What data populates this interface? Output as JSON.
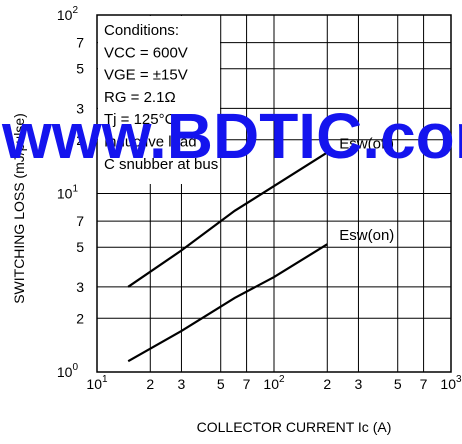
{
  "chart_data": {
    "type": "line",
    "xlabel": "COLLECTOR CURRENT Ic (A)",
    "ylabel": "SWITCHING LOSS (mJ/pulse)",
    "xscale": "log",
    "yscale": "log",
    "xlim": [
      10,
      1000
    ],
    "ylim": [
      1,
      100
    ],
    "grid": true,
    "x_ticks": [
      {
        "v": 10,
        "base": "10",
        "exp": "1"
      },
      {
        "v": 20,
        "label": "2"
      },
      {
        "v": 30,
        "label": "3"
      },
      {
        "v": 50,
        "label": "5"
      },
      {
        "v": 70,
        "label": "7"
      },
      {
        "v": 100,
        "base": "10",
        "exp": "2"
      },
      {
        "v": 200,
        "label": "2"
      },
      {
        "v": 300,
        "label": "3"
      },
      {
        "v": 500,
        "label": "5"
      },
      {
        "v": 700,
        "label": "7"
      },
      {
        "v": 1000,
        "base": "10",
        "exp": "3"
      }
    ],
    "y_ticks": [
      {
        "v": 1,
        "base": "10",
        "exp": "0"
      },
      {
        "v": 2,
        "label": "2"
      },
      {
        "v": 3,
        "label": "3"
      },
      {
        "v": 5,
        "label": "5"
      },
      {
        "v": 7,
        "label": "7"
      },
      {
        "v": 10,
        "base": "10",
        "exp": "1"
      },
      {
        "v": 20,
        "label": "2"
      },
      {
        "v": 30,
        "label": "3"
      },
      {
        "v": 50,
        "label": "5"
      },
      {
        "v": 70,
        "label": "7"
      },
      {
        "v": 100,
        "base": "10",
        "exp": "2"
      }
    ],
    "series": [
      {
        "name": "Esw(off)",
        "x": [
          15,
          30,
          60,
          100,
          200
        ],
        "y": [
          3.0,
          4.8,
          8.0,
          11.0,
          17.0
        ]
      },
      {
        "name": "Esw(on)",
        "x": [
          15,
          30,
          60,
          100,
          200
        ],
        "y": [
          1.15,
          1.7,
          2.6,
          3.4,
          5.2
        ]
      }
    ],
    "annotation_lines": [
      "Conditions:",
      "VCC = 600V",
      "VGE = ±15V",
      "RG = 2.1Ω",
      "Tj = 125°C",
      "Inductive load",
      "C snubber at bus"
    ]
  },
  "watermark": "www.BDTIC.com",
  "watermark_color": "#1414ee"
}
